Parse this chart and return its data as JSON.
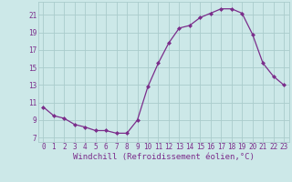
{
  "x": [
    0,
    1,
    2,
    3,
    4,
    5,
    6,
    7,
    8,
    9,
    10,
    11,
    12,
    13,
    14,
    15,
    16,
    17,
    18,
    19,
    20,
    21,
    22,
    23
  ],
  "y": [
    10.5,
    9.5,
    9.2,
    8.5,
    8.2,
    7.8,
    7.8,
    7.5,
    7.5,
    9.0,
    12.8,
    15.5,
    17.8,
    19.5,
    19.8,
    20.7,
    21.2,
    21.7,
    21.7,
    21.2,
    18.8,
    15.5,
    14.0,
    13.0
  ],
  "xlim": [
    -0.5,
    23.5
  ],
  "ylim": [
    6.5,
    22.5
  ],
  "xticks": [
    0,
    1,
    2,
    3,
    4,
    5,
    6,
    7,
    8,
    9,
    10,
    11,
    12,
    13,
    14,
    15,
    16,
    17,
    18,
    19,
    20,
    21,
    22,
    23
  ],
  "yticks": [
    7,
    9,
    11,
    13,
    15,
    17,
    19,
    21
  ],
  "xlabel": "Windchill (Refroidissement éolien,°C)",
  "line_color": "#7b2d8b",
  "marker": "D",
  "marker_size": 2.0,
  "bg_color": "#cce8e8",
  "grid_color": "#aacccc",
  "tick_label_color": "#7b2d8b",
  "xlabel_color": "#7b2d8b",
  "tick_fontsize": 5.5,
  "xlabel_fontsize": 6.5
}
